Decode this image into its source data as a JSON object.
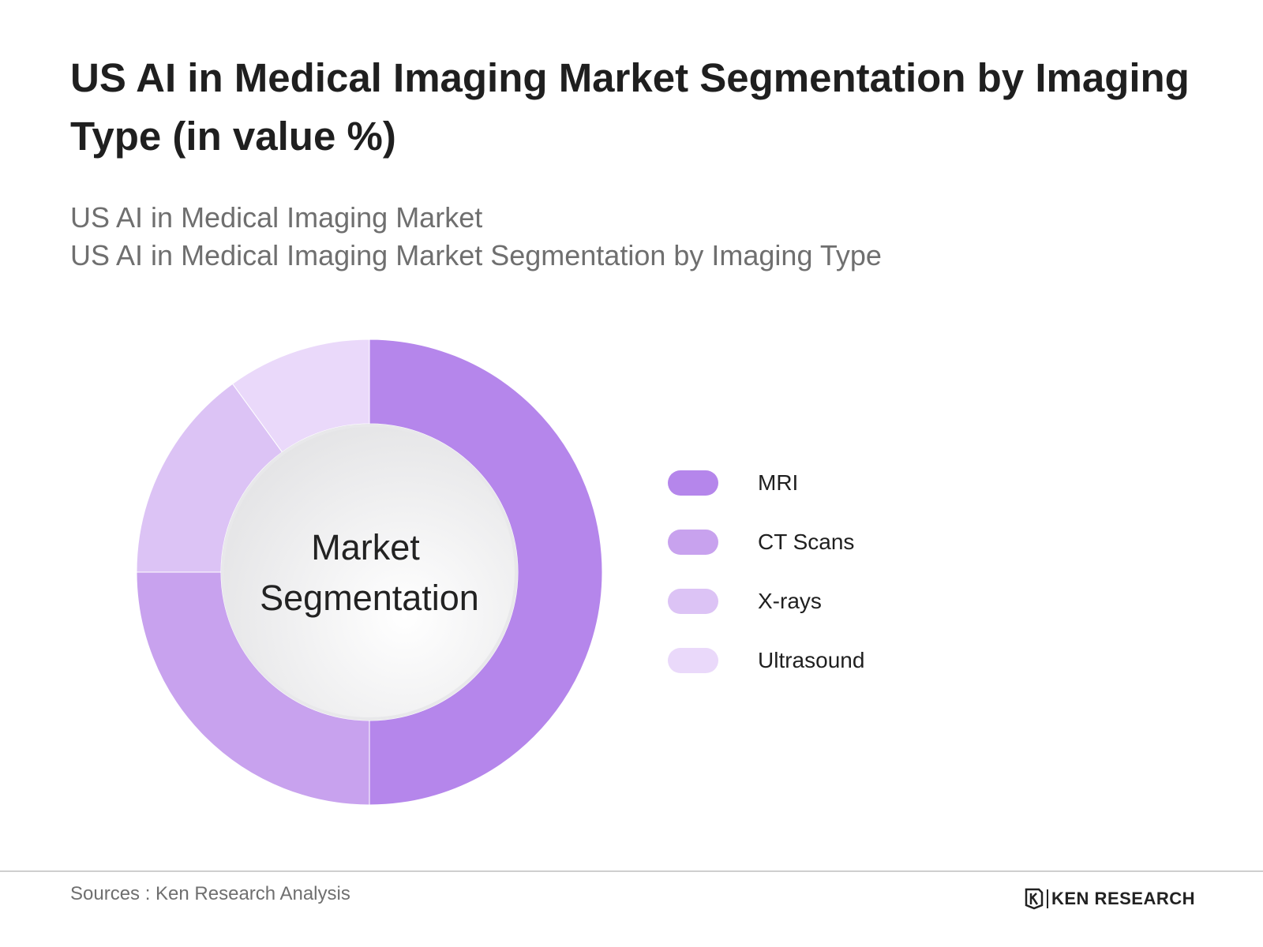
{
  "title": "US AI in Medical Imaging Market Segmentation by Imaging Type (in value %)",
  "subtitle_lines": [
    "US AI in Medical Imaging Market",
    "US AI in Medical Imaging Market Segmentation by Imaging Type"
  ],
  "chart_data": {
    "type": "pie",
    "subtype": "donut",
    "center_label": [
      "Market",
      "Segmentation"
    ],
    "categories": [
      "MRI",
      "CT Scans",
      "X-rays",
      "Ultrasound"
    ],
    "values": [
      50,
      25,
      15,
      10
    ],
    "colors": [
      "#b586eb",
      "#c8a2ee",
      "#dcc3f5",
      "#ead9fa"
    ],
    "legend_placement": "right"
  },
  "footer": {
    "source": "Sources : Ken Research Analysis",
    "brand": "KEN RESEARCH"
  }
}
